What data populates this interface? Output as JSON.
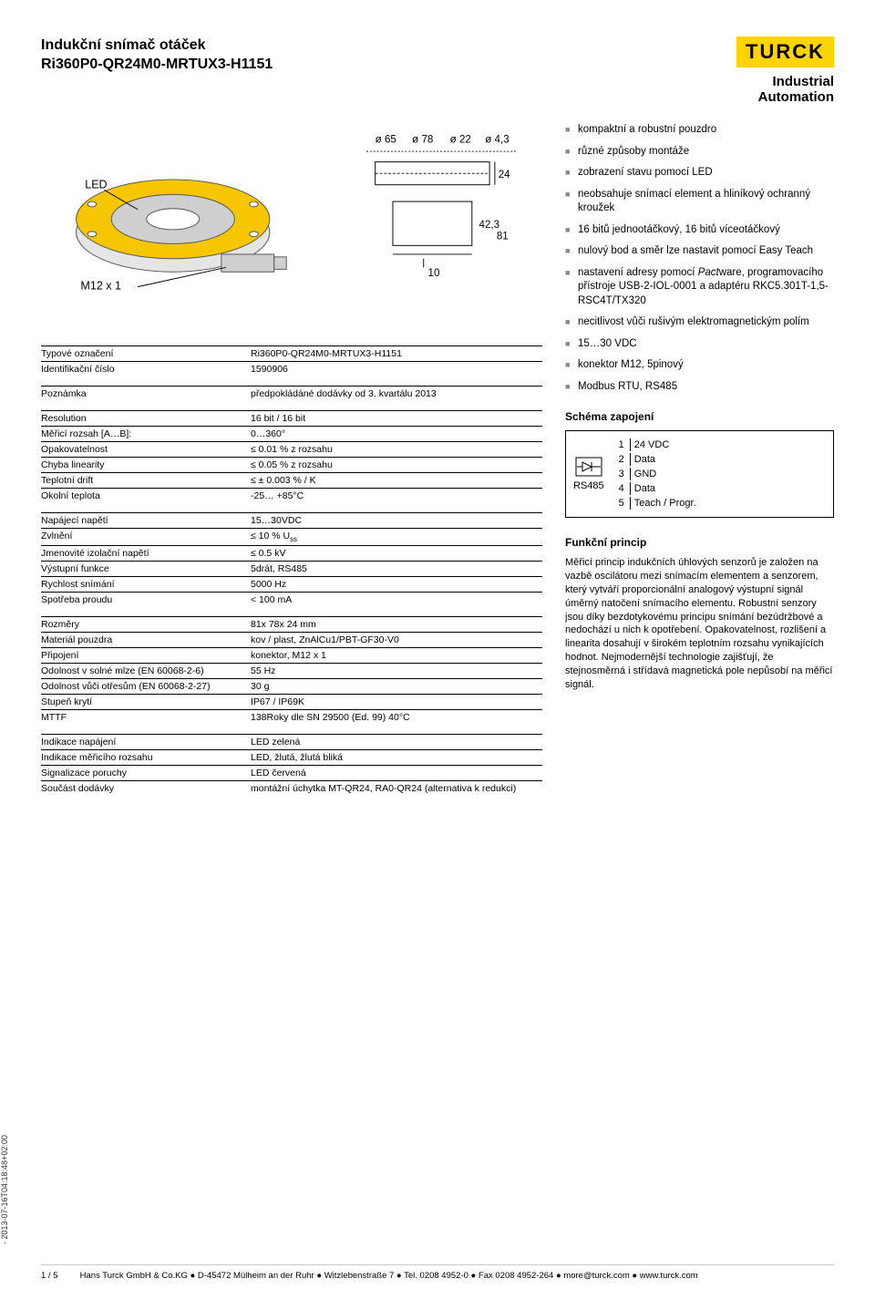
{
  "header": {
    "title_line1": "Indukční snímač otáček",
    "title_line2": "Ri360P0-QR24M0-MRTUX3-H1151",
    "logo_text": "TURCK",
    "industrial": "Industrial",
    "automation": "Automation"
  },
  "diagram": {
    "labels": {
      "led": "LED",
      "conn": "M12 x 1"
    },
    "dims": {
      "d65": "ø 65",
      "d78": "ø 78",
      "d22": "ø 22",
      "d43": "ø 4,3",
      "h24": "24",
      "h42": "42,3",
      "w81": "81",
      "h10": "10"
    },
    "body_color": "#f6c600",
    "cap_color": "#cfcfcf",
    "outline_color": "#555555"
  },
  "spec_groups": [
    [
      {
        "k": "Typové označení",
        "v": "Ri360P0-QR24M0-MRTUX3-H1151"
      },
      {
        "k": "Identifikační číslo",
        "v": "1590906"
      }
    ],
    [
      {
        "k": "Poznámka",
        "v": "předpokládáné dodávky od 3. kvartálu 2013"
      }
    ],
    [
      {
        "k": "Resolution",
        "v": "16 bit / 16 bit"
      },
      {
        "k": "Měřicí rozsah [A…B]:",
        "v": "0…360°"
      },
      {
        "k": "Opakovatelnost",
        "v": "≤ 0.01 % z rozsahu"
      },
      {
        "k": "Chyba linearity",
        "v": "≤  0.05 % z rozsahu"
      },
      {
        "k": "Teplotní drift",
        "v": "≤ ± 0.003 % / K"
      },
      {
        "k": "Okolní teplota",
        "v": "-25… +85°C"
      }
    ],
    [
      {
        "k": "Napájecí napětí",
        "v": "15…30VDC"
      },
      {
        "k": "Zvlnění",
        "v": "≤ 10 % U<sub>ss</sub>",
        "html": true
      },
      {
        "k": "Jmenovité izolační napětí",
        "v": "≤ 0.5 kV"
      },
      {
        "k": "Výstupní funkce",
        "v": "5drát, RS485"
      },
      {
        "k": "Rychlost snímání",
        "v": "5000 Hz"
      },
      {
        "k": "Spotřeba proudu",
        "v": "< 100 mA"
      }
    ],
    [
      {
        "k": "Rozměry",
        "v": "81x 78x 24 mm"
      },
      {
        "k": "Materiál pouzdra",
        "v": "kov / plast, ZnAlCu1/PBT-GF30-V0"
      },
      {
        "k": "Připojení",
        "v": "konektor, M12 x 1"
      },
      {
        "k": "Odolnost v solné mlze (EN 60068-2-6)",
        "v": "55 Hz"
      },
      {
        "k": "Odolnost vůči otřesům (EN 60068-2-27)",
        "v": "30 g"
      },
      {
        "k": "Stupeň krytí",
        "v": "IP67 / IP69K"
      },
      {
        "k": "MTTF",
        "v": "138Roky dle SN 29500 (Ed. 99) 40°C"
      }
    ],
    [
      {
        "k": "Indikace napájení",
        "v": "LED zelená"
      },
      {
        "k": "Indikace měřicího rozsahu",
        "v": "LED, žlutá, žlutá bliká"
      },
      {
        "k": "Signalizace poruchy",
        "v": "LED červená"
      },
      {
        "k": "Součást dodávky",
        "v": "montážní úchytka MT-QR24, RA0-QR24 (alternativa k redukci)"
      }
    ]
  ],
  "bullets": [
    "kompaktní a robustní pouzdro",
    "různé způsoby montáže",
    "zobrazení stavu pomocí LED",
    "neobsahuje snímací element a hliníkový ochranný kroužek",
    "16 bitů jednootáčkový, 16 bitů víceotáčkový",
    "nulový bod a směr lze nastavit pomocí Easy Teach",
    "nastavení adresy pomocí <span class=\"ital\">Pact</span>ware, programovacího přístroje USB-2-IOL-0001 a adaptéru RKC5.301T-1,5-RSC4T/TX320",
    "necitlivost vůči rušivým elektromagnetickým polím",
    "15…30 VDC",
    "konektor M12, 5pinový",
    "Modbus RTU, RS485"
  ],
  "schema": {
    "heading": "Schéma zapojení",
    "bus_label": "RS485",
    "pins": [
      {
        "n": "1",
        "t": "24 VDC"
      },
      {
        "n": "2",
        "t": "Data"
      },
      {
        "n": "3",
        "t": "GND"
      },
      {
        "n": "4",
        "t": "Data"
      },
      {
        "n": "5",
        "t": "Teach / Progr."
      }
    ]
  },
  "principle": {
    "heading": "Funkční princip",
    "text": "Měřicí princip indukčních úhlových senzorů je založen na vazbě oscilátoru mezi snímacím elementem a senzorem, který vytváří proporcionální analogový výstupní signál úměrný natočení snímacího elementu. Robustní senzory jsou díky bezdotykovému principu snímání bezúdržbové a nedochází u nich k opotřebení. Opakovatelnost, rozlišení a linearita dosahují v širokém teplotním rozsahu vynikajících hodnot. Nejmodernější technologie zajišťují, že stejnosměrná i střídavá magnetická pole nepůsobí na měřicí signál."
  },
  "footer": {
    "page": "1 / 5",
    "text": "Hans Turck GmbH & Co.KG ● D-45472 Mülheim an der Ruhr ● Witzlebenstraße 7 ● Tel. 0208 4952-0 ● Fax 0208 4952-264 ● more@turck.com ● www.turck.com"
  },
  "side_date": "· 2013-07-16T04:18:48+02:00"
}
